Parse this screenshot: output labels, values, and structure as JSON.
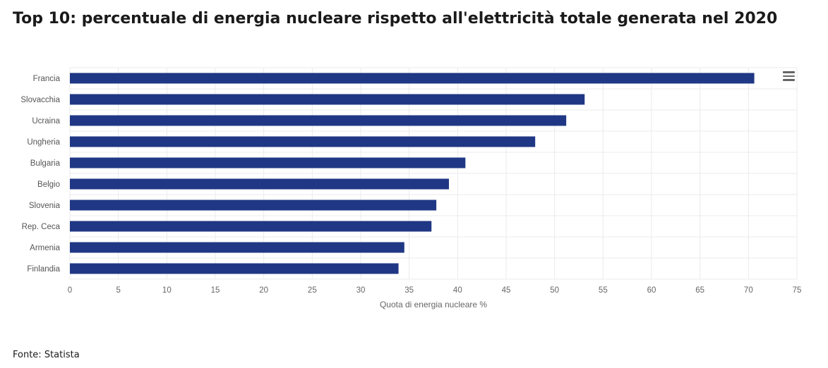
{
  "title": "Top 10: percentuale di energia nucleare rispetto all'elettricità totale generata nel 2020",
  "source": "Fonte: Statista",
  "menu_icon": "hamburger-menu-icon",
  "colors": {
    "bar": "#1f3784",
    "grid": "#ebebeb",
    "axis_label": "#666666",
    "category_label": "#555555"
  },
  "chart_data": {
    "type": "bar",
    "orientation": "horizontal",
    "categories": [
      "Francia",
      "Slovacchia",
      "Ucraina",
      "Ungheria",
      "Bulgaria",
      "Belgio",
      "Slovenia",
      "Rep. Ceca",
      "Armenia",
      "Finlandia"
    ],
    "values": [
      70.6,
      53.1,
      51.2,
      48.0,
      40.8,
      39.1,
      37.8,
      37.3,
      34.5,
      33.9
    ],
    "xlabel": "Quota di energia nucleare %",
    "ylabel": "",
    "xlim": [
      0,
      75
    ],
    "xticks": [
      "0",
      "5",
      "10",
      "15",
      "20",
      "25",
      "30",
      "35",
      "40",
      "45",
      "50",
      "55",
      "60",
      "65",
      "70",
      "75"
    ],
    "grid": true,
    "legend": "none"
  }
}
